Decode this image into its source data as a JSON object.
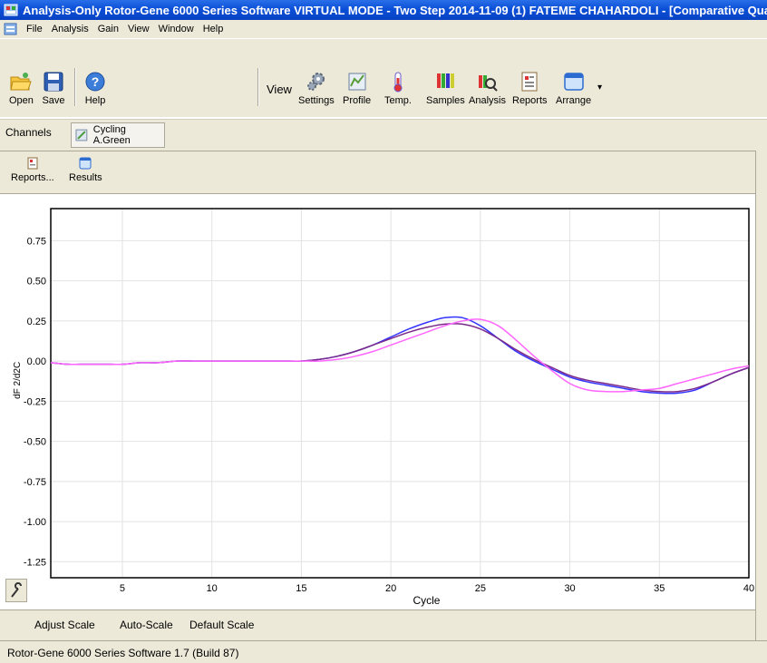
{
  "window": {
    "title": "Analysis-Only Rotor-Gene 6000 Series Software VIRTUAL MODE - Two Step 2014-11-09 (1) FATEME CHAHARDOLI - [Comparative Quantita"
  },
  "menu": [
    "File",
    "Analysis",
    "Gain",
    "View",
    "Window",
    "Help"
  ],
  "toolbar": {
    "open": "Open",
    "save": "Save",
    "help": "Help",
    "view_label": "View",
    "settings": "Settings",
    "profile": "Profile",
    "temp": "Temp.",
    "samples": "Samples",
    "analysis": "Analysis",
    "reports": "Reports",
    "arrange": "Arrange"
  },
  "channels": {
    "label": "Channels",
    "active": "Cycling A.Green"
  },
  "panel": {
    "reports": "Reports...",
    "results": "Results"
  },
  "chart_data": {
    "type": "line",
    "title": "",
    "xlabel": "Cycle",
    "ylabel": "dF 2/d2C",
    "xlim": [
      1,
      40
    ],
    "ylim": [
      -1.35,
      0.95
    ],
    "xticks": [
      5,
      10,
      15,
      20,
      25,
      30,
      35,
      40
    ],
    "yticks": [
      0.75,
      0.5,
      0.25,
      0.0,
      -0.25,
      -0.5,
      -0.75,
      -1.0,
      -1.25
    ],
    "ytick_labels": [
      "0.75",
      "0.50",
      "0.25",
      "0.00",
      "-0.25",
      "-0.50",
      "-0.75",
      "-1.00",
      "-1.25"
    ],
    "grid": true,
    "series": [
      {
        "color": "#3333ff",
        "x": [
          1,
          2,
          3,
          4,
          5,
          6,
          7,
          8,
          9,
          10,
          11,
          12,
          13,
          14,
          15,
          16,
          17,
          18,
          19,
          20,
          21,
          22,
          23,
          24,
          25,
          26,
          27,
          28,
          29,
          30,
          31,
          32,
          33,
          34,
          35,
          36,
          37,
          38,
          39,
          40
        ],
        "y": [
          -0.01,
          -0.02,
          -0.02,
          -0.02,
          -0.02,
          -0.01,
          -0.01,
          0.0,
          0.0,
          0.0,
          0.0,
          0.0,
          0.0,
          0.0,
          0.0,
          0.01,
          0.03,
          0.06,
          0.1,
          0.15,
          0.2,
          0.24,
          0.27,
          0.27,
          0.22,
          0.14,
          0.06,
          0.0,
          -0.05,
          -0.1,
          -0.13,
          -0.15,
          -0.17,
          -0.19,
          -0.2,
          -0.2,
          -0.18,
          -0.13,
          -0.08,
          -0.04
        ]
      },
      {
        "color": "#7a2a8a",
        "x": [
          1,
          2,
          3,
          4,
          5,
          6,
          7,
          8,
          9,
          10,
          11,
          12,
          13,
          14,
          15,
          16,
          17,
          18,
          19,
          20,
          21,
          22,
          23,
          24,
          25,
          26,
          27,
          28,
          29,
          30,
          31,
          32,
          33,
          34,
          35,
          36,
          37,
          38,
          39,
          40
        ],
        "y": [
          -0.01,
          -0.02,
          -0.02,
          -0.02,
          -0.02,
          -0.01,
          -0.01,
          0.0,
          0.0,
          0.0,
          0.0,
          0.0,
          0.0,
          0.0,
          0.0,
          0.01,
          0.03,
          0.06,
          0.1,
          0.14,
          0.18,
          0.21,
          0.23,
          0.23,
          0.2,
          0.14,
          0.07,
          0.01,
          -0.04,
          -0.09,
          -0.12,
          -0.14,
          -0.16,
          -0.18,
          -0.19,
          -0.19,
          -0.17,
          -0.13,
          -0.08,
          -0.04
        ]
      },
      {
        "color": "#ff66ff",
        "x": [
          1,
          2,
          3,
          4,
          5,
          6,
          7,
          8,
          9,
          10,
          11,
          12,
          13,
          14,
          15,
          16,
          17,
          18,
          19,
          20,
          21,
          22,
          23,
          24,
          25,
          26,
          27,
          28,
          29,
          30,
          31,
          32,
          33,
          34,
          35,
          36,
          37,
          38,
          39,
          40
        ],
        "y": [
          -0.01,
          -0.02,
          -0.02,
          -0.02,
          -0.02,
          -0.01,
          -0.01,
          0.0,
          0.0,
          0.0,
          0.0,
          0.0,
          0.0,
          0.0,
          0.0,
          0.0,
          0.01,
          0.03,
          0.06,
          0.1,
          0.14,
          0.18,
          0.22,
          0.25,
          0.26,
          0.22,
          0.13,
          0.03,
          -0.06,
          -0.14,
          -0.18,
          -0.19,
          -0.19,
          -0.18,
          -0.17,
          -0.14,
          -0.11,
          -0.08,
          -0.05,
          -0.03
        ]
      }
    ]
  },
  "scale_buttons": [
    "Adjust Scale",
    "Auto-Scale",
    "Default Scale"
  ],
  "status": "Rotor-Gene 6000 Series Software 1.7 (Build 87)"
}
